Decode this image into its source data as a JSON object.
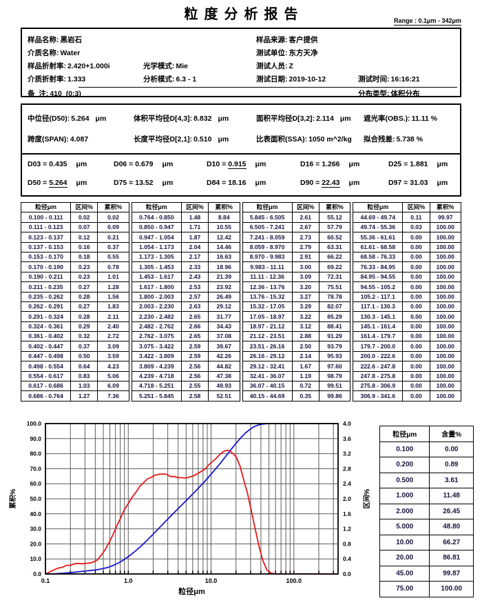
{
  "title": "粒度分析报告",
  "range_label": "Range : 0.1μm - 342μm",
  "info": {
    "sample_name": {
      "label": "样品名称:",
      "value": "黑岩石"
    },
    "sample_source": {
      "label": "样品来源:",
      "value": "客户提供"
    },
    "medium_name": {
      "label": "介质名称:",
      "value": "Water"
    },
    "test_org": {
      "label": "测试单位:",
      "value": "东方天净"
    },
    "sample_ri": {
      "label": "样品折射率:",
      "value": "2.420+1.000i"
    },
    "optical_mode": {
      "label": "光学模式:",
      "value": "Mie"
    },
    "tester": {
      "label": "测试人员:",
      "value": "Z"
    },
    "medium_ri": {
      "label": "介质折射率:",
      "value": "1.333"
    },
    "analysis_mode": {
      "label": "分析模式:",
      "value": "6.3 - 1"
    },
    "test_date": {
      "label": "测试日期:",
      "value": "2019-10-12"
    },
    "test_time": {
      "label": "测试时间:",
      "value": "16:16:21"
    },
    "note": {
      "label": "备  注:",
      "value": "410  (0:3)"
    },
    "distribution_type": {
      "label": "分布类型:",
      "value": "体积分布"
    }
  },
  "stats": {
    "d50": {
      "label": "中位径(D50):",
      "value": "5.264",
      "unit": "μm"
    },
    "d43": {
      "label": "体积平均径D[4,3]:",
      "value": "8.832",
      "unit": "μm"
    },
    "d32": {
      "label": "面积平均径D[3,2]:",
      "value": "2.114",
      "unit": "μm"
    },
    "obs": {
      "label": "遮光率(OBS.):",
      "value": "11.11 %",
      "unit": ""
    },
    "span": {
      "label": "跨度(SPAN):",
      "value": "4.087",
      "unit": ""
    },
    "d21": {
      "label": "长度平均径D[2,1]:",
      "value": "0.510",
      "unit": "μm"
    },
    "ssa": {
      "label": "比表面积(SSA):",
      "value": "1050 m^2/kg",
      "unit": ""
    },
    "residual": {
      "label": "拟合残差:",
      "value": "5.738 %",
      "unit": ""
    }
  },
  "d_values": [
    {
      "label": "D03 =",
      "value": "0.435",
      "unit": "μm",
      "underline": false
    },
    {
      "label": "D06 =",
      "value": "0.679",
      "unit": "μm",
      "underline": false
    },
    {
      "label": "D10 =",
      "value": "0.915",
      "unit": "μm",
      "underline": true
    },
    {
      "label": "D16 =",
      "value": "1.266",
      "unit": "μm",
      "underline": false
    },
    {
      "label": "D25 =",
      "value": "1.881",
      "unit": "μm",
      "underline": false
    },
    {
      "label": "D50 =",
      "value": "5.264",
      "unit": "μm",
      "underline": true
    },
    {
      "label": "D75 =",
      "value": "13.52",
      "unit": "μm",
      "underline": false
    },
    {
      "label": "D84 =",
      "value": "18.16",
      "unit": "μm",
      "underline": false
    },
    {
      "label": "D90 =",
      "value": "22.43",
      "unit": "μm",
      "underline": true
    },
    {
      "label": "D97 =",
      "value": "31.03",
      "unit": "μm",
      "underline": false
    }
  ],
  "distribution_table": {
    "headers": [
      "粒径μm",
      "区间%",
      "累积%"
    ],
    "groups": [
      [
        [
          "0.100 - 0.111",
          "0.02",
          "0.02"
        ],
        [
          "0.111 - 0.123",
          "0.07",
          "0.09"
        ],
        [
          "0.123 - 0.137",
          "0.12",
          "0.21"
        ],
        [
          "0.137 - 0.153",
          "0.16",
          "0.37"
        ],
        [
          "0.153 - 0.170",
          "0.18",
          "0.55"
        ],
        [
          "0.170 - 0.190",
          "0.23",
          "0.78"
        ],
        [
          "0.190 - 0.211",
          "0.23",
          "1.01"
        ],
        [
          "0.211 - 0.235",
          "0.27",
          "1.28"
        ],
        [
          "0.235 - 0.262",
          "0.28",
          "1.56"
        ],
        [
          "0.262 - 0.291",
          "0.27",
          "1.83"
        ],
        [
          "0.291 - 0.324",
          "0.28",
          "2.11"
        ],
        [
          "0.324 - 0.361",
          "0.29",
          "2.40"
        ],
        [
          "0.361 - 0.402",
          "0.32",
          "2.72"
        ],
        [
          "0.402 - 0.447",
          "0.37",
          "3.09"
        ],
        [
          "0.447 - 0.498",
          "0.50",
          "3.59"
        ],
        [
          "0.498 - 0.554",
          "0.64",
          "4.23"
        ],
        [
          "0.554 - 0.617",
          "0.83",
          "5.06"
        ],
        [
          "0.617 - 0.686",
          "1.03",
          "6.09"
        ],
        [
          "0.686 - 0.764",
          "1.27",
          "7.36"
        ]
      ],
      [
        [
          "0.764 - 0.850",
          "1.48",
          "8.84"
        ],
        [
          "0.850 - 0.947",
          "1.71",
          "10.55"
        ],
        [
          "0.947 - 1.054",
          "1.87",
          "12.42"
        ],
        [
          "1.054 - 1.173",
          "2.04",
          "14.46"
        ],
        [
          "1.173 - 1.305",
          "2.17",
          "16.63"
        ],
        [
          "1.305 - 1.453",
          "2.33",
          "18.96"
        ],
        [
          "1.453 - 1.617",
          "2.43",
          "21.39"
        ],
        [
          "1.617 - 1.800",
          "2.53",
          "23.92"
        ],
        [
          "1.800 - 2.003",
          "2.57",
          "26.49"
        ],
        [
          "2.003 - 2.230",
          "2.63",
          "29.12"
        ],
        [
          "2.230 - 2.482",
          "2.65",
          "31.77"
        ],
        [
          "2.482 - 2.762",
          "2.66",
          "34.43"
        ],
        [
          "2.762 - 3.075",
          "2.65",
          "37.08"
        ],
        [
          "3.075 - 3.422",
          "2.59",
          "39.67"
        ],
        [
          "3.422 - 3.809",
          "2.59",
          "42.26"
        ],
        [
          "3.809 - 4.239",
          "2.56",
          "44.82"
        ],
        [
          "4.239 - 4.718",
          "2.56",
          "47.38"
        ],
        [
          "4.718 - 5.251",
          "2.55",
          "49.93"
        ],
        [
          "5.251 - 5.845",
          "2.58",
          "52.51"
        ]
      ],
      [
        [
          "5.845 - 6.505",
          "2.61",
          "55.12"
        ],
        [
          "6.505 - 7.241",
          "2.67",
          "57.79"
        ],
        [
          "7.241 - 8.059",
          "2.73",
          "60.52"
        ],
        [
          "8.059 - 8.970",
          "2.79",
          "63.31"
        ],
        [
          "8.970 - 9.983",
          "2.91",
          "66.22"
        ],
        [
          "9.983 - 11.11",
          "3.00",
          "69.22"
        ],
        [
          "11.11 - 12.36",
          "3.09",
          "72.31"
        ],
        [
          "12.36 - 13.76",
          "3.20",
          "75.51"
        ],
        [
          "13.76 - 15.32",
          "3.27",
          "78.78"
        ],
        [
          "15.32 - 17.05",
          "3.29",
          "82.07"
        ],
        [
          "17.05 - 18.97",
          "3.22",
          "85.29"
        ],
        [
          "18.97 - 21.12",
          "3.12",
          "88.41"
        ],
        [
          "21.12 - 23.51",
          "2.88",
          "91.29"
        ],
        [
          "23.51 - 26.16",
          "2.50",
          "93.79"
        ],
        [
          "26.16 - 29.12",
          "2.14",
          "95.93"
        ],
        [
          "29.12 - 32.41",
          "1.67",
          "97.60"
        ],
        [
          "32.41 - 36.07",
          "1.19",
          "98.79"
        ],
        [
          "36.07 - 40.15",
          "0.72",
          "99.51"
        ],
        [
          "40.15 - 44.69",
          "0.35",
          "99.86"
        ]
      ],
      [
        [
          "44.69 - 49.74",
          "0.11",
          "99.97"
        ],
        [
          "49.74 - 55.36",
          "0.03",
          "100.00"
        ],
        [
          "55.36 - 61.61",
          "0.00",
          "100.00"
        ],
        [
          "61.61 - 68.58",
          "0.00",
          "100.00"
        ],
        [
          "68.58 - 76.33",
          "0.00",
          "100.00"
        ],
        [
          "76.33 - 84.95",
          "0.00",
          "100.00"
        ],
        [
          "84.95 - 94.55",
          "0.00",
          "100.00"
        ],
        [
          "94.55 - 105.2",
          "0.00",
          "100.00"
        ],
        [
          "105.2 - 117.1",
          "0.00",
          "100.00"
        ],
        [
          "117.1 - 130.3",
          "0.00",
          "100.00"
        ],
        [
          "130.3 - 145.1",
          "0.00",
          "100.00"
        ],
        [
          "145.1 - 161.4",
          "0.00",
          "100.00"
        ],
        [
          "161.4 - 179.7",
          "0.00",
          "100.00"
        ],
        [
          "179.7 - 200.0",
          "0.00",
          "100.00"
        ],
        [
          "200.0 - 222.6",
          "0.00",
          "100.00"
        ],
        [
          "222.6 - 247.8",
          "0.00",
          "100.00"
        ],
        [
          "247.8 - 275.8",
          "0.00",
          "100.00"
        ],
        [
          "275.8 - 306.9",
          "0.00",
          "100.00"
        ],
        [
          "306.9 - 341.6",
          "0.00",
          "100.00"
        ]
      ]
    ]
  },
  "summary_table": {
    "headers": [
      "粒径μm",
      "含量%"
    ],
    "rows": [
      [
        "0.100",
        "0.00"
      ],
      [
        "0.200",
        "0.89"
      ],
      [
        "0.500",
        "3.61"
      ],
      [
        "1.000",
        "11.48"
      ],
      [
        "2.000",
        "26.45"
      ],
      [
        "5.000",
        "48.80"
      ],
      [
        "10.00",
        "66.27"
      ],
      [
        "20.00",
        "86.81"
      ],
      [
        "45.00",
        "99.87"
      ],
      [
        "75.00",
        "100.00"
      ]
    ]
  },
  "chart_data": {
    "type": "line",
    "x_scale": "log",
    "xlabel": "粒径μm",
    "ylabel_left": "累积%",
    "ylabel_right": "区间%",
    "xlim": [
      0.1,
      342
    ],
    "ylim_left": [
      0,
      100
    ],
    "ylim_right": [
      0,
      4
    ],
    "x_tick_labels": [
      "0.1",
      "1.0",
      "10.0",
      "100.0"
    ],
    "x_ticks": [
      0.1,
      1.0,
      10.0,
      100.0
    ],
    "y_left_step": 10,
    "y_right_step": 0.4,
    "grid": true,
    "legend": "none",
    "colors": {
      "cumulative": "#1616cc",
      "interval": "#e81616",
      "grid": "#5a5a5a",
      "frame": "#000000"
    },
    "bin_lower_first": 0.1,
    "bins_upper": [
      0.111,
      0.123,
      0.137,
      0.153,
      0.17,
      0.19,
      0.211,
      0.235,
      0.262,
      0.291,
      0.324,
      0.361,
      0.402,
      0.447,
      0.498,
      0.554,
      0.617,
      0.686,
      0.764,
      0.85,
      0.947,
      1.054,
      1.173,
      1.305,
      1.453,
      1.617,
      1.8,
      2.003,
      2.23,
      2.482,
      2.762,
      3.075,
      3.422,
      3.809,
      4.239,
      4.718,
      5.251,
      5.845,
      6.505,
      7.241,
      8.059,
      8.97,
      9.983,
      11.11,
      12.36,
      13.76,
      15.32,
      17.05,
      18.97,
      21.12,
      23.51,
      26.16,
      29.12,
      32.41,
      36.07,
      40.15,
      44.69,
      49.74,
      55.36,
      61.61,
      68.58,
      76.33,
      84.95,
      94.55,
      105.2,
      117.1,
      130.3,
      145.1,
      161.4,
      179.7,
      200.0,
      222.6,
      247.8,
      275.8,
      306.9,
      341.6
    ],
    "series": [
      {
        "name": "累积%",
        "axis": "left",
        "y": [
          0.02,
          0.09,
          0.21,
          0.37,
          0.55,
          0.78,
          1.01,
          1.28,
          1.56,
          1.83,
          2.11,
          2.4,
          2.72,
          3.09,
          3.59,
          4.23,
          5.06,
          6.09,
          7.36,
          8.84,
          10.55,
          12.42,
          14.46,
          16.63,
          18.96,
          21.39,
          23.92,
          26.49,
          29.12,
          31.77,
          34.43,
          37.08,
          39.67,
          42.26,
          44.82,
          47.38,
          49.93,
          52.51,
          55.12,
          57.79,
          60.52,
          63.31,
          66.22,
          69.22,
          72.31,
          75.51,
          78.78,
          82.07,
          85.29,
          88.41,
          91.29,
          93.79,
          95.93,
          97.6,
          98.79,
          99.51,
          99.86,
          99.97,
          100.0,
          100.0,
          100.0,
          100.0,
          100.0,
          100.0,
          100.0,
          100.0,
          100.0,
          100.0,
          100.0,
          100.0,
          100.0,
          100.0,
          100.0,
          100.0,
          100.0,
          100.0
        ]
      },
      {
        "name": "区间%",
        "axis": "right",
        "y": [
          0.02,
          0.07,
          0.12,
          0.16,
          0.18,
          0.23,
          0.23,
          0.27,
          0.28,
          0.27,
          0.28,
          0.29,
          0.32,
          0.37,
          0.5,
          0.64,
          0.83,
          1.03,
          1.27,
          1.48,
          1.71,
          1.87,
          2.04,
          2.17,
          2.33,
          2.43,
          2.53,
          2.57,
          2.63,
          2.65,
          2.66,
          2.65,
          2.59,
          2.59,
          2.56,
          2.56,
          2.55,
          2.58,
          2.61,
          2.67,
          2.73,
          2.79,
          2.91,
          3.0,
          3.09,
          3.2,
          3.27,
          3.29,
          3.22,
          3.12,
          2.88,
          2.5,
          2.14,
          1.67,
          1.19,
          0.72,
          0.35,
          0.11,
          0.03,
          0,
          0,
          0,
          0,
          0,
          0,
          0,
          0,
          0,
          0,
          0,
          0,
          0,
          0,
          0,
          0,
          0
        ]
      }
    ]
  }
}
